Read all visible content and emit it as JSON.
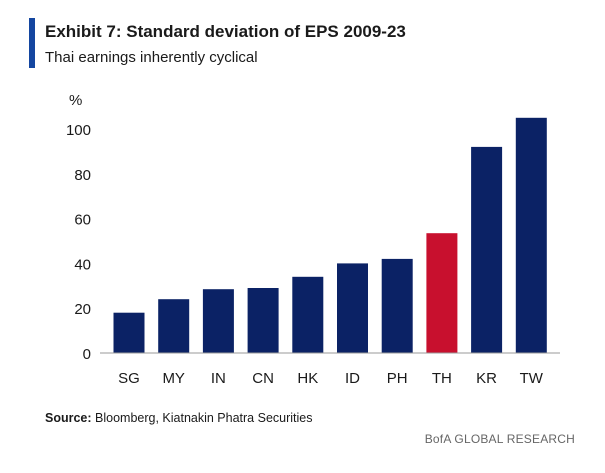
{
  "header": {
    "title": "Exhibit 7: Standard deviation of EPS 2009-23",
    "subtitle": "Thai earnings inherently cyclical"
  },
  "colors": {
    "accent": "#1446a0",
    "bar": "#0b2265",
    "highlight": "#c8102e",
    "axis": "#999999"
  },
  "chart_data": {
    "type": "bar",
    "unit_label": "%",
    "categories": [
      "SG",
      "MY",
      "IN",
      "CN",
      "HK",
      "ID",
      "PH",
      "TH",
      "KR",
      "TW"
    ],
    "values": [
      18,
      24,
      28.5,
      29,
      34,
      40,
      42,
      53.5,
      92,
      105
    ],
    "highlight_category": "TH",
    "ylim": [
      0,
      100
    ],
    "yticks": [
      0,
      20,
      40,
      60,
      80,
      100
    ],
    "grid": false,
    "legend": "none"
  },
  "footer": {
    "source_label": "Source:",
    "source_text": " Bloomberg, Kiatnakin Phatra Securities",
    "brand": "BofA GLOBAL RESEARCH"
  }
}
